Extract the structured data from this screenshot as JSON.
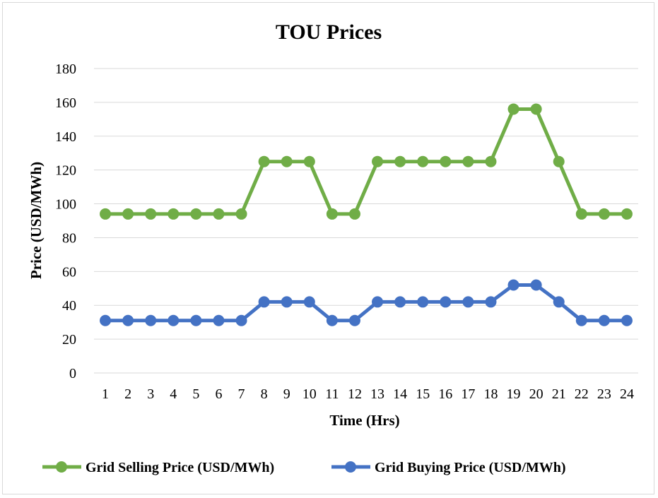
{
  "chart_data": {
    "type": "line",
    "title": "TOU Prices",
    "xlabel": "Time (Hrs)",
    "ylabel": "Price (USD/MWh)",
    "categories": [
      "1",
      "2",
      "3",
      "4",
      "5",
      "6",
      "7",
      "8",
      "9",
      "10",
      "11",
      "12",
      "13",
      "14",
      "15",
      "16",
      "17",
      "18",
      "19",
      "20",
      "21",
      "22",
      "23",
      "24"
    ],
    "ylim": [
      0,
      180
    ],
    "yticks": [
      0,
      20,
      40,
      60,
      80,
      100,
      120,
      140,
      160,
      180
    ],
    "grid": true,
    "legend_position": "bottom",
    "series": [
      {
        "name": "Grid Selling Price (USD/MWh)",
        "color": "#70ad47",
        "values": [
          94,
          94,
          94,
          94,
          94,
          94,
          94,
          125,
          125,
          125,
          94,
          94,
          125,
          125,
          125,
          125,
          125,
          125,
          156,
          156,
          125,
          94,
          94,
          94
        ]
      },
      {
        "name": "Grid Buying Price (USD/MWh)",
        "color": "#4472c4",
        "values": [
          31,
          31,
          31,
          31,
          31,
          31,
          31,
          42,
          42,
          42,
          31,
          31,
          42,
          42,
          42,
          42,
          42,
          42,
          52,
          52,
          42,
          31,
          31,
          31
        ]
      }
    ]
  }
}
